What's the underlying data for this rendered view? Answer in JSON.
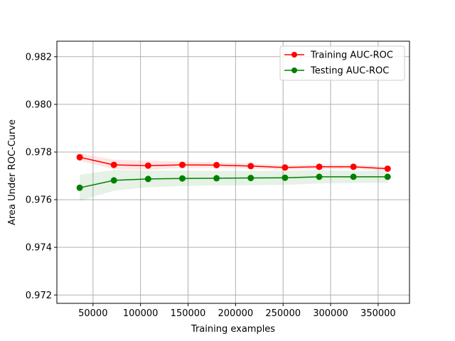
{
  "chart_data": {
    "type": "line",
    "title": "",
    "xlabel": "Training examples",
    "ylabel": "Area Under ROC-Curve",
    "xlim": [
      12000,
      383000
    ],
    "ylim": [
      0.97165,
      0.98265
    ],
    "xticks": [
      50000,
      100000,
      150000,
      200000,
      250000,
      300000,
      350000
    ],
    "yticks": [
      0.972,
      0.974,
      0.976,
      0.978,
      0.98,
      0.982
    ],
    "grid": true,
    "legend_position": "top-right",
    "x": [
      36000,
      72000,
      108000,
      144000,
      180000,
      216000,
      252000,
      288000,
      324000,
      360000
    ],
    "series": [
      {
        "name": "Training AUC-ROC",
        "color": "#ff0000",
        "values": [
          0.97778,
          0.97746,
          0.97743,
          0.97746,
          0.97745,
          0.97741,
          0.97735,
          0.97738,
          0.97738,
          0.9773
        ],
        "band_upper": [
          0.97795,
          0.97768,
          0.97764,
          0.9776,
          0.97757,
          0.97751,
          0.97745,
          0.97748,
          0.97748,
          0.97739
        ],
        "band_lower": [
          0.97762,
          0.97728,
          0.97725,
          0.97733,
          0.97733,
          0.97731,
          0.97725,
          0.97728,
          0.97728,
          0.97721
        ]
      },
      {
        "name": "Testing AUC-ROC",
        "color": "#008000",
        "values": [
          0.9765,
          0.97681,
          0.97687,
          0.97689,
          0.9769,
          0.97691,
          0.97692,
          0.97696,
          0.97696,
          0.97696
        ],
        "band_upper": [
          0.97705,
          0.97725,
          0.97722,
          0.97722,
          0.97721,
          0.97721,
          0.97721,
          0.97724,
          0.97721,
          0.97721
        ],
        "band_lower": [
          0.97595,
          0.97638,
          0.97652,
          0.97657,
          0.9766,
          0.97661,
          0.97662,
          0.97668,
          0.9767,
          0.9767
        ]
      }
    ]
  }
}
